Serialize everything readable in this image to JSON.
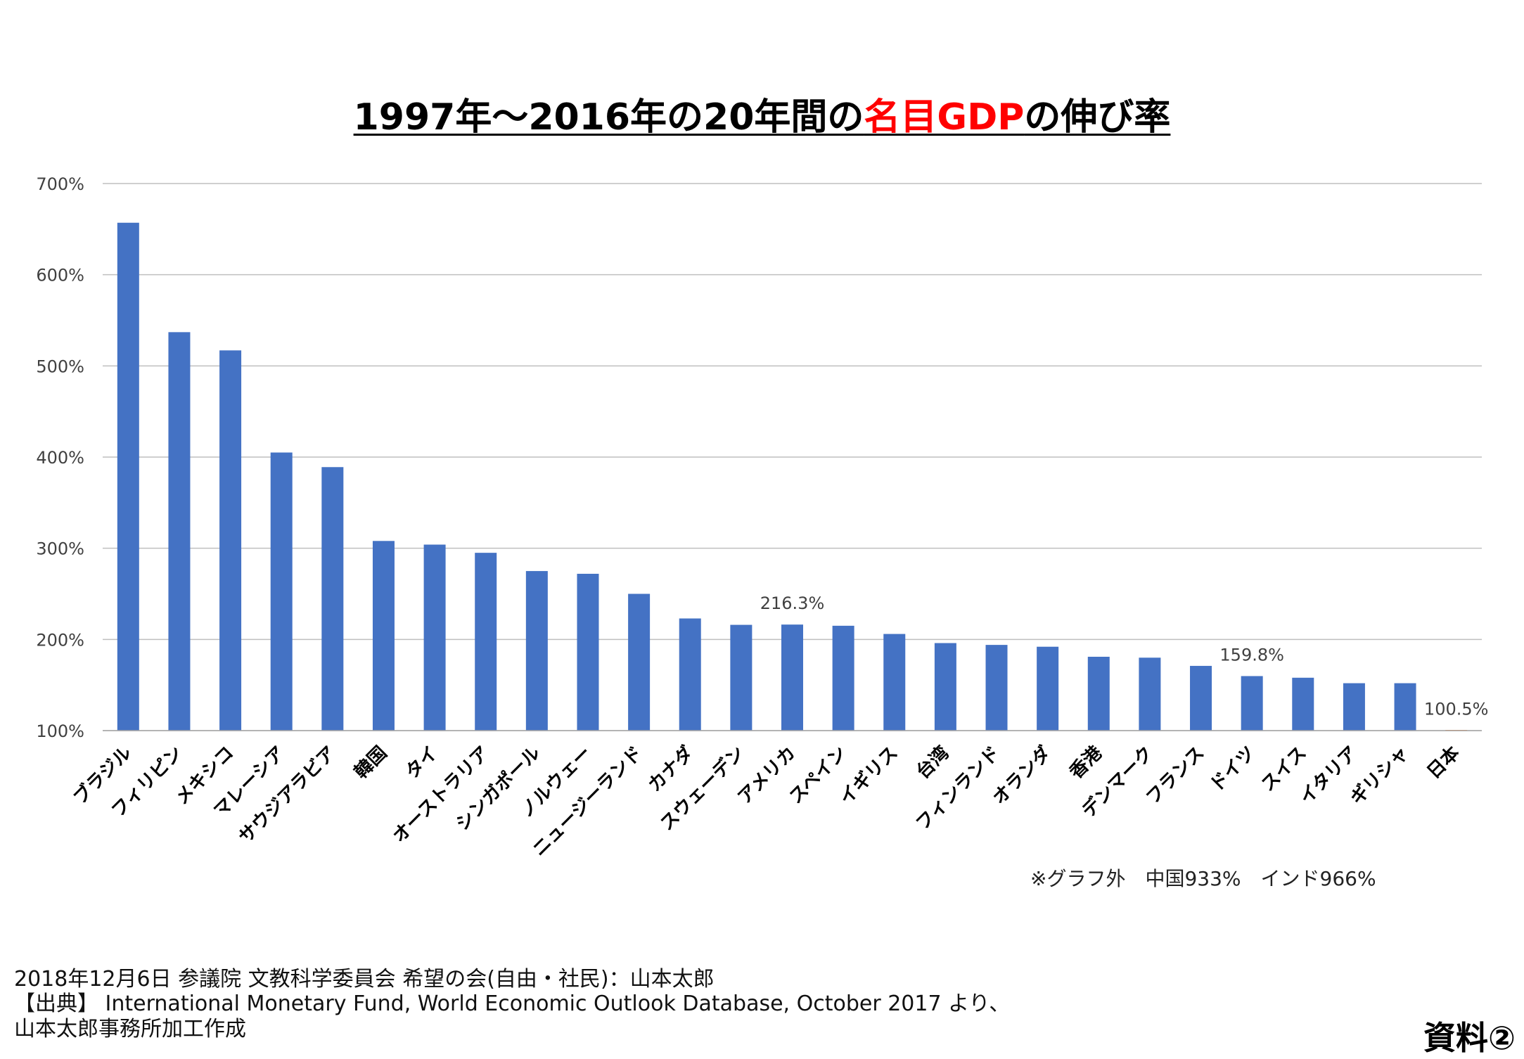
{
  "title": {
    "part1": "1997年～2016年の20年間の",
    "highlight": "名目GDP",
    "part2": "の伸び率"
  },
  "colors": {
    "bar": "#4472c4",
    "bar_highlight": "#ed7d31",
    "grid": "#bfbfbf",
    "title_highlight": "#ff0000"
  },
  "chart_data": {
    "type": "bar",
    "title": "1997年～2016年の20年間の名目GDPの伸び率",
    "xlabel": "",
    "ylabel": "",
    "ylim": [
      100,
      700
    ],
    "yticks": [
      100,
      200,
      300,
      400,
      500,
      600,
      700
    ],
    "ytick_labels": [
      "100%",
      "200%",
      "300%",
      "400%",
      "500%",
      "600%",
      "700%"
    ],
    "grid": true,
    "legend": "none",
    "categories": [
      "ブラジル",
      "フィリピン",
      "メキシコ",
      "マレーシア",
      "サウジアラビア",
      "韓国",
      "タイ",
      "オーストラリア",
      "シンガポール",
      "ノルウェー",
      "ニュージーランド",
      "カナダ",
      "スウェーデン",
      "アメリカ",
      "スペイン",
      "イギリス",
      "台湾",
      "フィンランド",
      "オランダ",
      "香港",
      "デンマーク",
      "フランス",
      "ドイツ",
      "スイス",
      "イタリア",
      "ギリシャ",
      "日本"
    ],
    "values": [
      657,
      537,
      517,
      405,
      389,
      308,
      304,
      295,
      275,
      272,
      250,
      223,
      216,
      216.3,
      215,
      206,
      196,
      194,
      192,
      181,
      180,
      171,
      159.8,
      158,
      152,
      152,
      100.5
    ],
    "highlight_index": 26,
    "annotations": [
      {
        "category": "アメリカ",
        "label": "216.3%"
      },
      {
        "category": "ドイツ",
        "label": "159.8%"
      },
      {
        "category": "日本",
        "label": "100.5%"
      }
    ]
  },
  "note": "※グラフ外　中国933%　インド966%",
  "footer": {
    "line1": "2018年12月6日 参議院 文教科学委員会 希望の会(自由・社民)：山本太郎",
    "line2": "【出典】 International Monetary Fund, World Economic Outlook Database, October 2017 より、",
    "line3": "山本太郎事務所加工作成"
  },
  "badge": "資料②"
}
